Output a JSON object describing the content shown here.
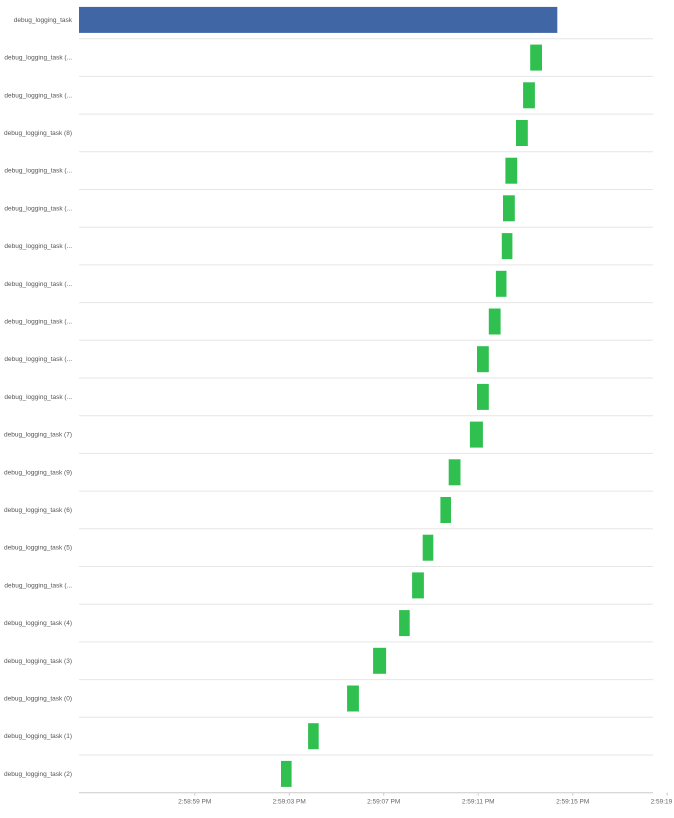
{
  "chart_data": {
    "type": "bar",
    "subtype": "gantt",
    "title": "",
    "xlabel": "",
    "ylabel": "",
    "grid": "horizontal",
    "legend": "none",
    "colors": {
      "parent": "#4066a5",
      "child": "#2fc050"
    },
    "x_ticks": [
      "2:58:59 PM",
      "2:59:03 PM",
      "2:59:07 PM",
      "2:59:11 PM",
      "2:59:15 PM",
      "2:59:19 PM"
    ],
    "xlim_seconds": [
      -4.9,
      19.4
    ],
    "x_reference": "2:58:59 PM",
    "rows": [
      {
        "label": "debug_logging_task",
        "start": -4.9,
        "end": 15.35,
        "kind": "parent"
      },
      {
        "label": "debug_logging_task (...",
        "start": 14.2,
        "end": 14.7,
        "kind": "child"
      },
      {
        "label": "debug_logging_task (...",
        "start": 13.9,
        "end": 14.4,
        "kind": "child"
      },
      {
        "label": "debug_logging_task (8)",
        "start": 13.6,
        "end": 14.1,
        "kind": "child"
      },
      {
        "label": "debug_logging_task (...",
        "start": 13.15,
        "end": 13.65,
        "kind": "child"
      },
      {
        "label": "debug_logging_task (...",
        "start": 13.05,
        "end": 13.55,
        "kind": "child"
      },
      {
        "label": "debug_logging_task (...",
        "start": 13.0,
        "end": 13.45,
        "kind": "child"
      },
      {
        "label": "debug_logging_task (...",
        "start": 12.75,
        "end": 13.2,
        "kind": "child"
      },
      {
        "label": "debug_logging_task (...",
        "start": 12.45,
        "end": 12.95,
        "kind": "child"
      },
      {
        "label": "debug_logging_task (...",
        "start": 11.95,
        "end": 12.45,
        "kind": "child"
      },
      {
        "label": "debug_logging_task (...",
        "start": 11.95,
        "end": 12.45,
        "kind": "child"
      },
      {
        "label": "debug_logging_task (7)",
        "start": 11.65,
        "end": 12.2,
        "kind": "child"
      },
      {
        "label": "debug_logging_task (9)",
        "start": 10.75,
        "end": 11.25,
        "kind": "child"
      },
      {
        "label": "debug_logging_task (6)",
        "start": 10.4,
        "end": 10.85,
        "kind": "child"
      },
      {
        "label": "debug_logging_task (5)",
        "start": 9.65,
        "end": 10.1,
        "kind": "child"
      },
      {
        "label": "debug_logging_task (...",
        "start": 9.2,
        "end": 9.7,
        "kind": "child"
      },
      {
        "label": "debug_logging_task (4)",
        "start": 8.65,
        "end": 9.1,
        "kind": "child"
      },
      {
        "label": "debug_logging_task (3)",
        "start": 7.55,
        "end": 8.1,
        "kind": "child"
      },
      {
        "label": "debug_logging_task (0)",
        "start": 6.45,
        "end": 6.95,
        "kind": "child"
      },
      {
        "label": "debug_logging_task (1)",
        "start": 4.8,
        "end": 5.25,
        "kind": "child"
      },
      {
        "label": "debug_logging_task (2)",
        "start": 3.65,
        "end": 4.1,
        "kind": "child"
      }
    ]
  }
}
